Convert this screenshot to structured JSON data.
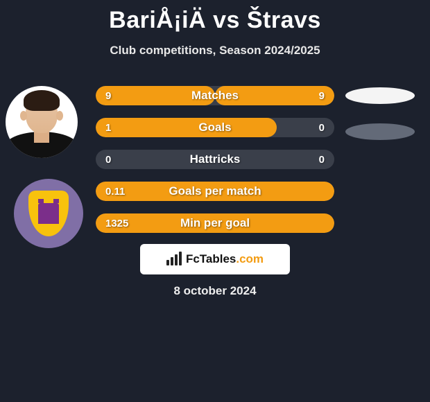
{
  "header": {
    "title": "BariÅ¡iÄ vs Štravs",
    "subtitle": "Club competitions, Season 2024/2025"
  },
  "colors": {
    "background": "#1c212d",
    "bar_track": "#3a3f4a",
    "bar_fill": "#f39c12",
    "ellipse_light": "#f4f4f4",
    "ellipse_dark": "#636a78",
    "text": "#ffffff"
  },
  "stats": [
    {
      "label": "Matches",
      "left_val": "9",
      "right_val": "9",
      "left_pct": 50,
      "right_pct": 50,
      "ellipse": "light"
    },
    {
      "label": "Goals",
      "left_val": "1",
      "right_val": "0",
      "left_pct": 76,
      "right_pct": 0,
      "ellipse": "dark"
    },
    {
      "label": "Hattricks",
      "left_val": "0",
      "right_val": "0",
      "left_pct": 0,
      "right_pct": 0,
      "ellipse": null
    },
    {
      "label": "Goals per match",
      "left_val": "0.11",
      "right_val": "",
      "left_pct": 100,
      "right_pct": 0,
      "ellipse": null
    },
    {
      "label": "Min per goal",
      "left_val": "1325",
      "right_val": "",
      "left_pct": 100,
      "right_pct": 0,
      "ellipse": null
    }
  ],
  "brand": {
    "name": "FcTables",
    "suffix": ".com"
  },
  "date": "8 october 2024"
}
